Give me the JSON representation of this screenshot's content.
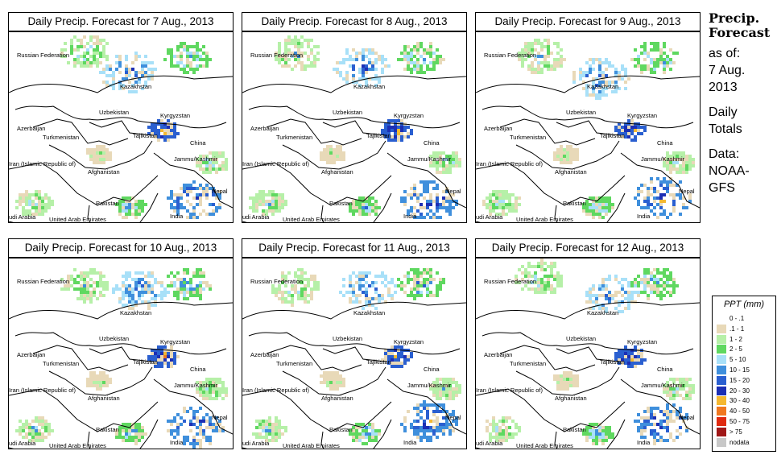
{
  "panels": [
    {
      "title": "Daily Precip. Forecast for  7 Aug., 2013"
    },
    {
      "title": "Daily Precip. Forecast for  8 Aug., 2013"
    },
    {
      "title": "Daily Precip. Forecast for  9 Aug., 2013"
    },
    {
      "title": "Daily Precip. Forecast for  10 Aug., 2013"
    },
    {
      "title": "Daily Precip. Forecast for  11 Aug., 2013"
    },
    {
      "title": "Daily Precip. Forecast for  12 Aug., 2013"
    }
  ],
  "countries": [
    "Russian Federation",
    "Kazakhstan",
    "Uzbekistan",
    "Kyrgyzstan",
    "Azerbaijan",
    "Turkmenistan",
    "Tajikistan",
    "China",
    "Jammu/Kashmir",
    "Iran  (Islamic Republic of)",
    "Afghanistan",
    "Nepal",
    "Pakistan",
    "udi Arabia",
    "United Arab Emirates",
    "India"
  ],
  "side": {
    "title_line1": "Precip.",
    "title_line2": "Forecast",
    "asof_1": "as of:",
    "asof_2": "7 Aug.",
    "asof_3": "2013",
    "totals_1": "Daily",
    "totals_2": "Totals",
    "data_1": "Data:",
    "data_2": "NOAA-",
    "data_3": "GFS"
  },
  "legend": {
    "title": "PPT (mm)",
    "items": [
      {
        "label": "0 - .1",
        "color": "#ffffff"
      },
      {
        "label": ".1 - 1",
        "color": "#e8d9b8"
      },
      {
        "label": "1 - 2",
        "color": "#b6f0a8"
      },
      {
        "label": "2 - 5",
        "color": "#5fd860"
      },
      {
        "label": "5 - 10",
        "color": "#a8e0f8"
      },
      {
        "label": "10 - 15",
        "color": "#3f8fdc"
      },
      {
        "label": "15 - 20",
        "color": "#2a5fd0"
      },
      {
        "label": "20 - 30",
        "color": "#1c2fb4"
      },
      {
        "label": "30 - 40",
        "color": "#f5b830"
      },
      {
        "label": "40 - 50",
        "color": "#f07820"
      },
      {
        "label": "50 - 75",
        "color": "#e02a10"
      },
      {
        "label": "> 75",
        "color": "#a01818"
      },
      {
        "label": "nodata",
        "color": "#c8c8c8"
      }
    ]
  }
}
